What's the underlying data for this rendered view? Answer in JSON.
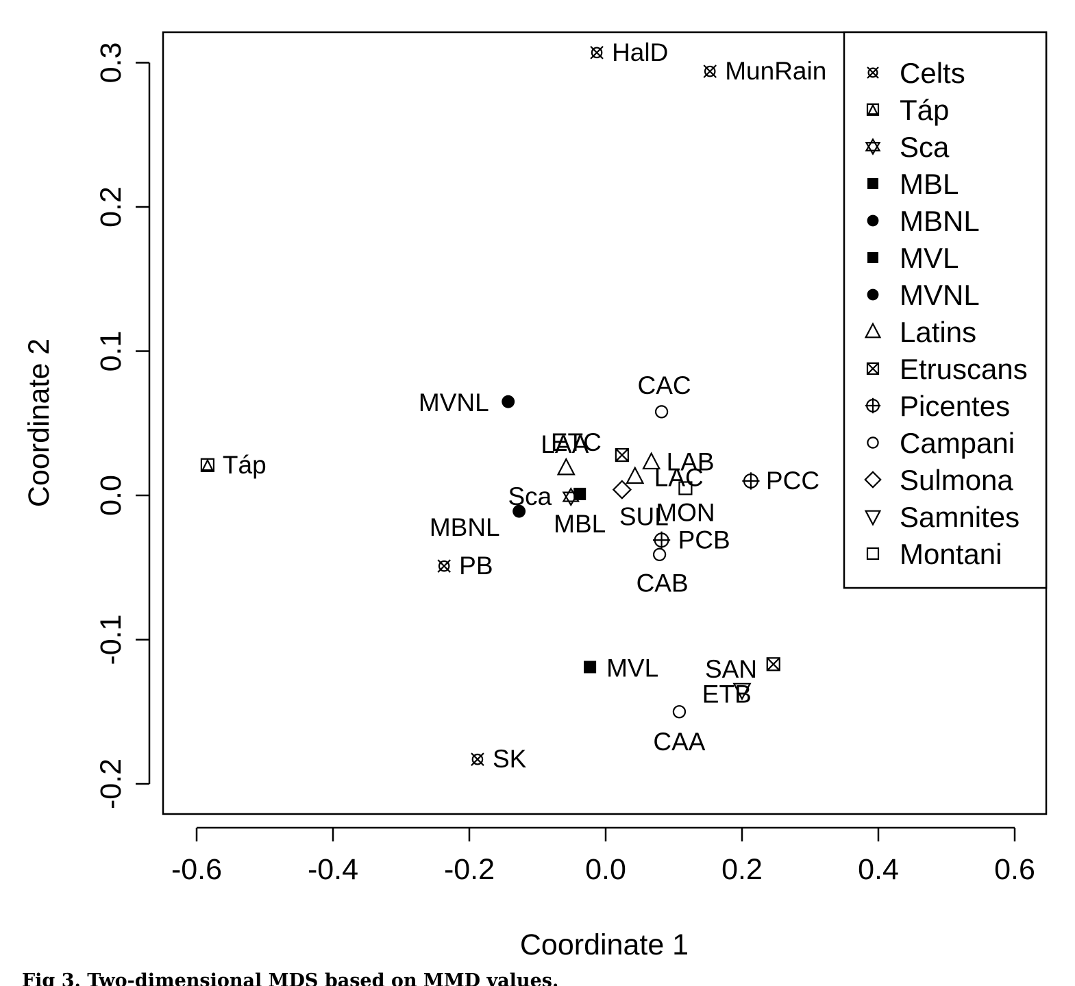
{
  "figure_caption": "Fig 3. Two-dimensional MDS based on MMD values.",
  "chart_data": {
    "type": "scatter",
    "xlabel": "Coordinate 1",
    "ylabel": "Coordinate 2",
    "xlim": [
      -0.65,
      0.65
    ],
    "ylim": [
      -0.22,
      0.32
    ],
    "xticks": [
      "-0.6",
      "-0.4",
      "-0.2",
      "0.0",
      "0.2",
      "0.4",
      "0.6"
    ],
    "yticks": [
      "-0.2",
      "-0.1",
      "0.0",
      "0.1",
      "0.2",
      "0.3"
    ],
    "grid": false,
    "legend_position": "top-right",
    "series": [
      {
        "name": "Celts",
        "marker": "boxed-x",
        "points": [
          {
            "label": "HalD",
            "x": -0.013,
            "y": 0.307
          },
          {
            "label": "MunRain",
            "x": 0.153,
            "y": 0.294
          },
          {
            "label": "PB",
            "x": -0.237,
            "y": -0.049
          },
          {
            "label": "SK",
            "x": -0.188,
            "y": -0.183
          }
        ]
      },
      {
        "name": "Táp",
        "marker": "boxed-triangle",
        "points": [
          {
            "label": "Táp",
            "x": -0.584,
            "y": 0.021
          }
        ]
      },
      {
        "name": "Sca",
        "marker": "star",
        "points": [
          {
            "label": "Sca",
            "x": -0.051,
            "y": -0.001
          }
        ]
      },
      {
        "name": "MBL",
        "marker": "filled-square",
        "points": [
          {
            "label": "MBL",
            "x": -0.038,
            "y": 0.001
          }
        ]
      },
      {
        "name": "MBNL",
        "marker": "filled-circle",
        "points": [
          {
            "label": "MBNL",
            "x": -0.127,
            "y": -0.011
          }
        ]
      },
      {
        "name": "MVL",
        "marker": "filled-square",
        "points": [
          {
            "label": "MVL",
            "x": -0.023,
            "y": -0.119
          }
        ]
      },
      {
        "name": "MVNL",
        "marker": "filled-circle",
        "points": [
          {
            "label": "MVNL",
            "x": -0.143,
            "y": 0.065
          }
        ]
      },
      {
        "name": "Latins",
        "marker": "triangle",
        "points": [
          {
            "label": "LAA",
            "x": -0.058,
            "y": 0.019
          },
          {
            "label": "LAB",
            "x": 0.067,
            "y": 0.023
          },
          {
            "label": "LAC",
            "x": 0.043,
            "y": 0.013
          }
        ]
      },
      {
        "name": "Etruscans",
        "marker": "boxed-x-square",
        "points": [
          {
            "label": "ETC",
            "x": 0.024,
            "y": 0.028
          },
          {
            "label": "ETB",
            "x": 0.246,
            "y": -0.117
          }
        ]
      },
      {
        "name": "Picentes",
        "marker": "circle-plus",
        "points": [
          {
            "label": "PCC",
            "x": 0.213,
            "y": 0.01
          },
          {
            "label": "PCB",
            "x": 0.082,
            "y": -0.031
          }
        ]
      },
      {
        "name": "Campani",
        "marker": "circle",
        "points": [
          {
            "label": "CAC",
            "x": 0.082,
            "y": 0.058
          },
          {
            "label": "CAB",
            "x": 0.079,
            "y": -0.041
          },
          {
            "label": "CAA",
            "x": 0.108,
            "y": -0.15
          }
        ]
      },
      {
        "name": "Sulmona",
        "marker": "diamond",
        "points": [
          {
            "label": "SUL",
            "x": 0.024,
            "y": 0.004
          }
        ]
      },
      {
        "name": "Samnites",
        "marker": "down-triangle",
        "points": [
          {
            "label": "SAN",
            "x": 0.2,
            "y": -0.135
          }
        ]
      },
      {
        "name": "Montani",
        "marker": "square",
        "points": [
          {
            "label": "MON",
            "x": 0.117,
            "y": 0.005
          }
        ]
      }
    ]
  }
}
